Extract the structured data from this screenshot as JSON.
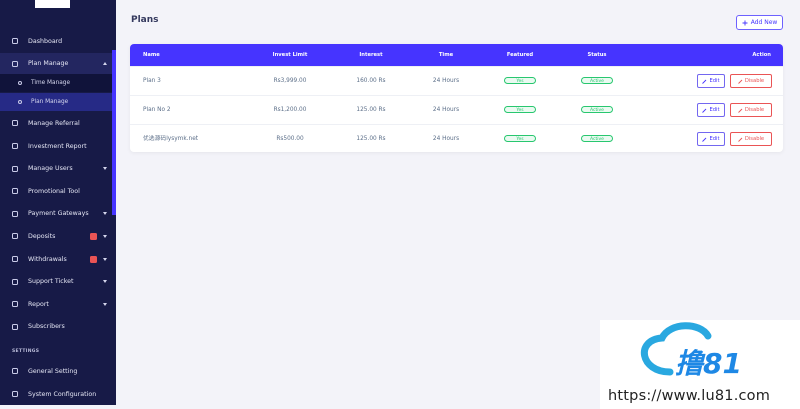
{
  "sidebar": {
    "menu": [
      {
        "label": "Dashboard"
      },
      {
        "label": "Plan Manage",
        "active": true,
        "caret": "up",
        "children": [
          {
            "label": "Time Manage"
          },
          {
            "label": "Plan Manage",
            "active": true
          }
        ]
      },
      {
        "label": "Manage Referral"
      },
      {
        "label": "Investment Report"
      },
      {
        "label": "Manage Users",
        "caret": "down"
      },
      {
        "label": "Promotional Tool"
      },
      {
        "label": "Payment Gateways",
        "caret": "down"
      },
      {
        "label": "Deposits",
        "caret": "down",
        "badge": true
      },
      {
        "label": "Withdrawals",
        "caret": "down",
        "badge": true
      },
      {
        "label": "Support Ticket",
        "caret": "down"
      },
      {
        "label": "Report",
        "caret": "down"
      },
      {
        "label": "Subscribers"
      }
    ],
    "section_label": "SETTINGS",
    "settings": [
      {
        "label": "General Setting"
      },
      {
        "label": "System Configuration"
      }
    ]
  },
  "header": {
    "title": "Plans",
    "button": "Add New"
  },
  "table": {
    "columns": [
      "Name",
      "Invest Limit",
      "Interest",
      "Time",
      "Featured",
      "Status",
      "Action"
    ],
    "rows": [
      {
        "cells": [
          "Plan 3",
          "Rs3,999.00",
          "160.00 Rs",
          "24 Hours",
          "Yes",
          "Active"
        ],
        "actions": [
          "Edit",
          "Disable"
        ]
      },
      {
        "cells": [
          "Plan No 2",
          "Rs1,200.00",
          "125.00 Rs",
          "24 Hours",
          "Yes",
          "Active"
        ],
        "actions": [
          "Edit",
          "Disable"
        ]
      },
      {
        "cells": [
          "优选源码lysymk.net",
          "Rs500.00",
          "125.00 Rs",
          "24 Hours",
          "Yes",
          "Active"
        ],
        "actions": [
          "Edit",
          "Disable"
        ]
      }
    ]
  },
  "watermark": {
    "logo": "撸81",
    "url": "https://www.lu81.com"
  }
}
